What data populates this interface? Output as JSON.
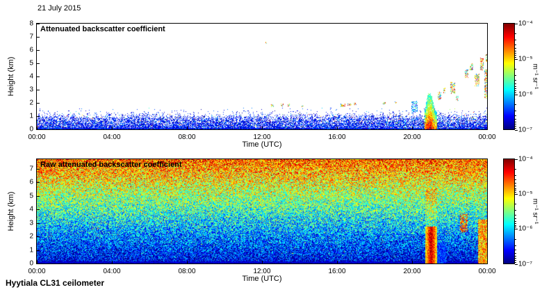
{
  "page": {
    "date_label": "21 July 2015",
    "footer_label": "Hyytiala CL31 ceilometer"
  },
  "chart_data": [
    {
      "type": "heatmap",
      "title": "Attenuated backscatter coefficient",
      "xlabel": "Time (UTC)",
      "ylabel": "Height (km)",
      "x_ticks": [
        "00:00",
        "04:00",
        "08:00",
        "12:00",
        "16:00",
        "20:00",
        "00:00"
      ],
      "x_range_hours": [
        0,
        24
      ],
      "y_ticks": [
        8,
        7,
        6,
        5,
        4,
        3,
        2,
        1,
        0
      ],
      "ylim": [
        0,
        8
      ],
      "colormap": "jet",
      "background": "#ffffff",
      "colorbar": {
        "ticks": [
          "10⁻⁴",
          "10⁻⁵",
          "10⁻⁶",
          "10⁻⁷"
        ],
        "unit": "m⁻¹ sr⁻¹",
        "scale": "log",
        "min_value": 1e-07,
        "max_value": 0.0001
      },
      "features": {
        "aerosol_layer": {
          "top_km": 1.0,
          "description": "blue speckled boundary-layer aerosol 0-1 km all day"
        },
        "precipitation_plume": {
          "start_h": 20.65,
          "end_h": 21.3,
          "top_km": 2.7
        },
        "cloud_fragments": [
          {
            "time_h": 12.2,
            "height_km": 6.5,
            "width_h": 0.06,
            "depth_km": 0.12
          },
          {
            "time_h": 12.55,
            "height_km": 1.75,
            "width_h": 0.12,
            "depth_km": 0.2
          },
          {
            "time_h": 13.05,
            "height_km": 1.8,
            "width_h": 0.1,
            "depth_km": 0.18
          },
          {
            "time_h": 13.4,
            "height_km": 1.8,
            "width_h": 0.08,
            "depth_km": 0.18
          },
          {
            "time_h": 14.15,
            "height_km": 1.7,
            "width_h": 0.06,
            "depth_km": 0.12
          },
          {
            "time_h": 16.3,
            "height_km": 1.8,
            "width_h": 0.22,
            "depth_km": 0.22
          },
          {
            "time_h": 16.65,
            "height_km": 1.85,
            "width_h": 0.18,
            "depth_km": 0.2
          },
          {
            "time_h": 16.95,
            "height_km": 1.9,
            "width_h": 0.1,
            "depth_km": 0.15
          },
          {
            "time_h": 18.5,
            "height_km": 1.95,
            "width_h": 0.12,
            "depth_km": 0.15
          },
          {
            "time_h": 19.1,
            "height_km": 2.0,
            "width_h": 0.06,
            "depth_km": 0.12
          },
          {
            "time_h": 20.1,
            "height_km": 1.7,
            "width_h": 0.3,
            "depth_km": 0.8,
            "tone": "cool"
          },
          {
            "time_h": 21.45,
            "height_km": 2.5,
            "width_h": 0.15,
            "depth_km": 0.6
          },
          {
            "time_h": 21.7,
            "height_km": 2.9,
            "width_h": 0.1,
            "depth_km": 0.4
          },
          {
            "time_h": 22.15,
            "height_km": 3.1,
            "width_h": 0.22,
            "depth_km": 0.9
          },
          {
            "time_h": 22.4,
            "height_km": 2.3,
            "width_h": 0.1,
            "depth_km": 0.35
          },
          {
            "time_h": 22.9,
            "height_km": 4.2,
            "width_h": 0.15,
            "depth_km": 0.6
          },
          {
            "time_h": 23.15,
            "height_km": 4.7,
            "width_h": 0.12,
            "depth_km": 0.5
          },
          {
            "time_h": 23.45,
            "height_km": 3.7,
            "width_h": 0.2,
            "depth_km": 0.9
          },
          {
            "time_h": 23.7,
            "height_km": 4.9,
            "width_h": 0.15,
            "depth_km": 0.9
          },
          {
            "time_h": 23.9,
            "height_km": 3.4,
            "width_h": 0.12,
            "depth_km": 2.2
          },
          {
            "time_h": 23.95,
            "height_km": 5.4,
            "width_h": 0.08,
            "depth_km": 0.6
          }
        ]
      }
    },
    {
      "type": "heatmap",
      "title": "Raw attenuated backscatter coefficient",
      "xlabel": "Time (UTC)",
      "ylabel": "Height (km)",
      "x_ticks": [
        "00:00",
        "04:00",
        "08:00",
        "12:00",
        "16:00",
        "20:00",
        "00:00"
      ],
      "x_range_hours": [
        0,
        24
      ],
      "y_ticks": [
        7,
        6,
        5,
        4,
        3,
        2,
        1,
        0
      ],
      "ylim": [
        0,
        7.7
      ],
      "colormap": "jet",
      "colorbar": {
        "ticks": [
          "10⁻⁴",
          "10⁻⁵",
          "10⁻⁶",
          "10⁻⁷"
        ],
        "unit": "m⁻¹ sr⁻¹",
        "scale": "log",
        "min_value": 1e-07,
        "max_value": 0.0001
      },
      "features": {
        "noise_gradient": {
          "t_bottom": 0.07,
          "t_top": 0.78,
          "jitter": 0.46,
          "description": "range-dependent noise: blue near surface grading to yellow/orange/red aloft"
        },
        "precipitation_plume": {
          "start_h": 20.7,
          "end_h": 21.3,
          "top_km": 2.7
        },
        "post_plume_gap": {
          "start_h": 21.32,
          "end_h": 21.8,
          "top_km": 1.5
        },
        "red_blob": {
          "start_h": 22.55,
          "end_h": 22.95,
          "bottom_km": 2.3,
          "top_km": 3.6
        },
        "right_edge_streak": {
          "start_h": 23.5,
          "end_h": 23.97,
          "top_km": 3.2
        }
      }
    }
  ]
}
